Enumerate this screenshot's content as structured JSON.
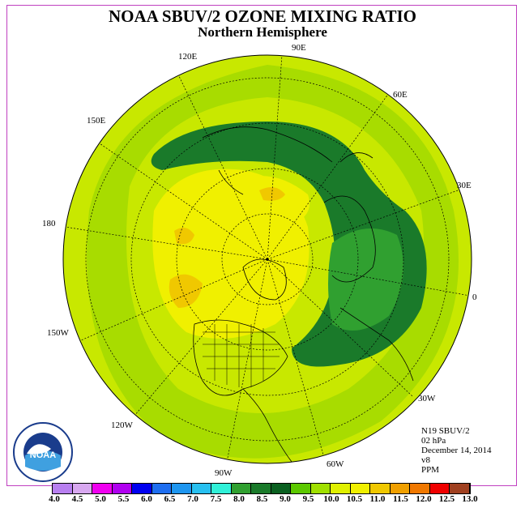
{
  "title": "NOAA SBUV/2 OZONE MIXING RATIO",
  "subtitle": "Northern Hemisphere",
  "longitude_labels": {
    "e90": "90E",
    "e120": "120E",
    "e150": "150E",
    "e180": "180",
    "w150": "150W",
    "w120": "120W",
    "w90": "90W",
    "w60": "60W",
    "w30": "30W",
    "zero": "0",
    "e30": "30E",
    "e60": "60E"
  },
  "info": {
    "instrument": "N19 SBUV/2",
    "level": "02 hPa",
    "date": "December 14, 2014",
    "version": "v8",
    "units": "PPM"
  },
  "colorbar": {
    "colors": [
      "#b87ff0",
      "#d8a8f0",
      "#f000f0",
      "#b000f0",
      "#0000f0",
      "#1e6ef0",
      "#1e96f0",
      "#28c0f0",
      "#30f0d8",
      "#30a030",
      "#1a7a2a",
      "#0a6020",
      "#5cc800",
      "#a0e000",
      "#e0f000",
      "#f0f000",
      "#f0c800",
      "#f0a000",
      "#f07800",
      "#f00000",
      "#a04020"
    ],
    "labels": [
      "4.0",
      "4.5",
      "5.0",
      "5.5",
      "6.0",
      "6.5",
      "7.0",
      "7.5",
      "8.0",
      "8.5",
      "9.0",
      "9.5",
      "10.0",
      "10.5",
      "11.0",
      "11.5",
      "12.0",
      "12.5",
      "13.0"
    ]
  },
  "logo_text": "NOAA"
}
